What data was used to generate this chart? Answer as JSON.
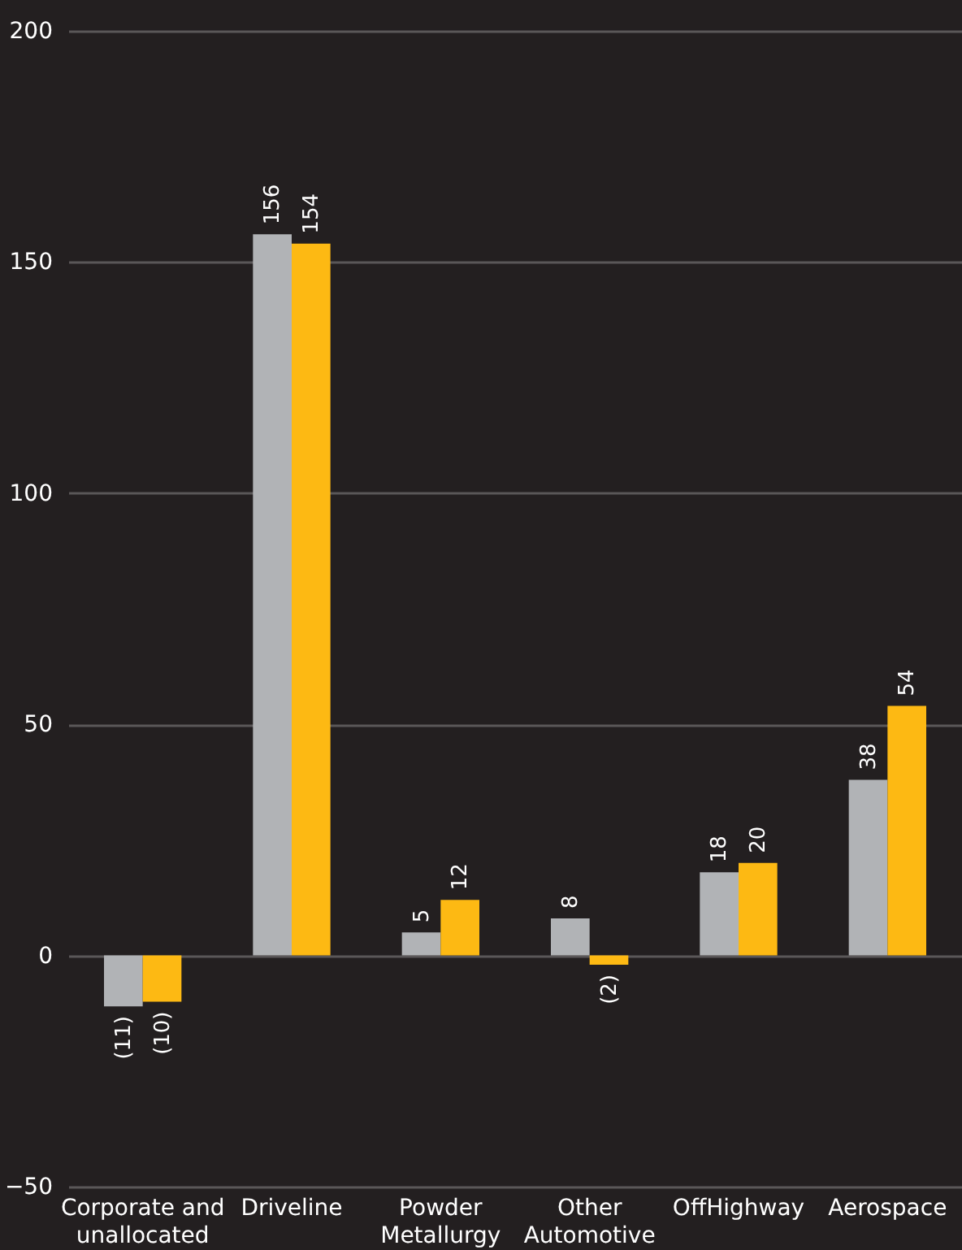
{
  "chart_data": {
    "type": "bar",
    "categories": [
      "Corporate and unallocated",
      "Driveline",
      "Powder Metallurgy",
      "Other Automotive",
      "OffHighway",
      "Aerospace"
    ],
    "series": [
      {
        "color": "#b1b3b6",
        "values": [
          -11,
          156,
          5,
          8,
          18,
          38
        ],
        "value_labels": [
          "(11)",
          "156",
          "5",
          "8",
          "18",
          "38"
        ]
      },
      {
        "color": "#fdb913",
        "values": [
          -10,
          154,
          12,
          -2,
          20,
          54
        ],
        "value_labels": [
          "(10)",
          "154",
          "12",
          "(2)",
          "20",
          "54"
        ]
      }
    ],
    "ylim": [
      -50,
      200
    ],
    "yticks": [
      -50,
      0,
      50,
      100,
      150,
      200
    ],
    "grid": "y",
    "legend": false
  }
}
